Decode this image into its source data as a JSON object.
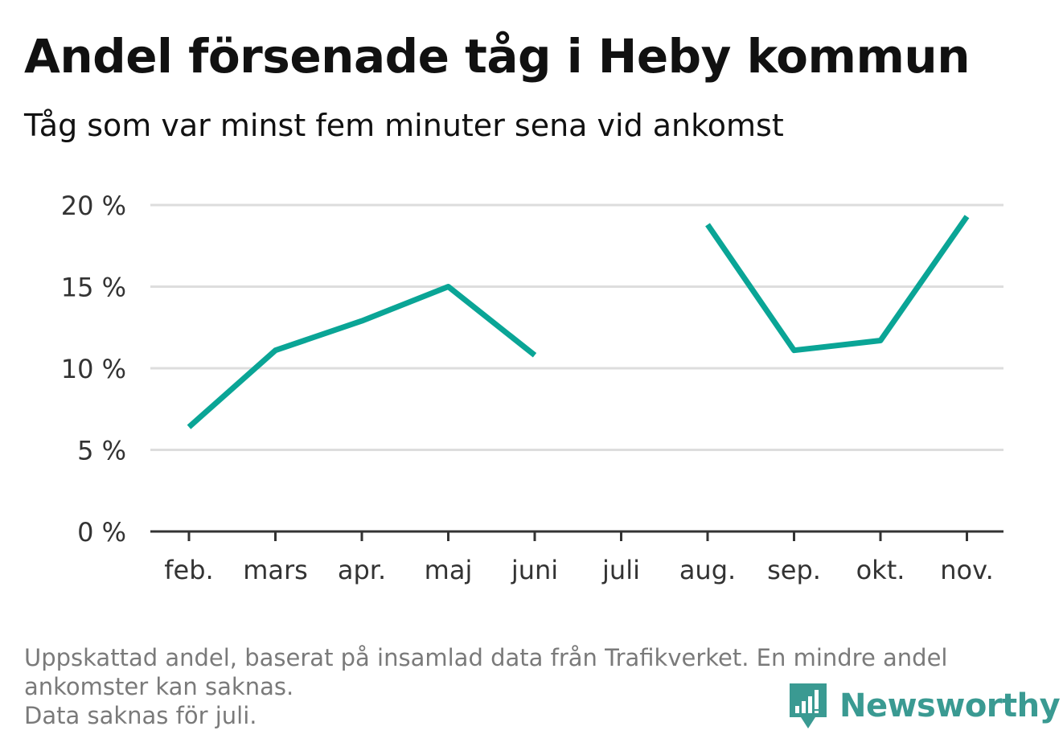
{
  "title": "Andel försenade tåg i Heby kommun",
  "subtitle": "Tåg som var minst fem minuter sena vid ankomst",
  "footnote": {
    "line1": "Uppskattad andel, baserat på insamlad data från Trafikverket. En mindre andel",
    "line2": "ankomster kan saknas.",
    "line3": "Data saknas för juli."
  },
  "brand": {
    "name": "Newsworthy",
    "icon": "bar-chart-bubble-icon",
    "color": "#3a9a92"
  },
  "colors": {
    "line": "#0aa596",
    "grid": "#dddddd",
    "axis": "#333333",
    "text": "#333333"
  },
  "chart_data": {
    "type": "line",
    "categories": [
      "feb.",
      "mars",
      "apr.",
      "maj",
      "juni",
      "juli",
      "aug.",
      "sep.",
      "okt.",
      "nov."
    ],
    "series": [
      {
        "values": [
          6.4,
          11.1,
          12.9,
          15.0,
          10.8,
          null,
          18.8,
          11.1,
          11.7,
          19.3
        ]
      }
    ],
    "y_ticks": [
      0,
      5,
      10,
      15,
      20
    ],
    "y_tick_labels": [
      "0 %",
      "5 %",
      "10 %",
      "15 %",
      "20 %"
    ],
    "ylim": [
      0,
      20
    ],
    "xlabel": "",
    "ylabel": "",
    "grid": true,
    "legend": "none"
  }
}
